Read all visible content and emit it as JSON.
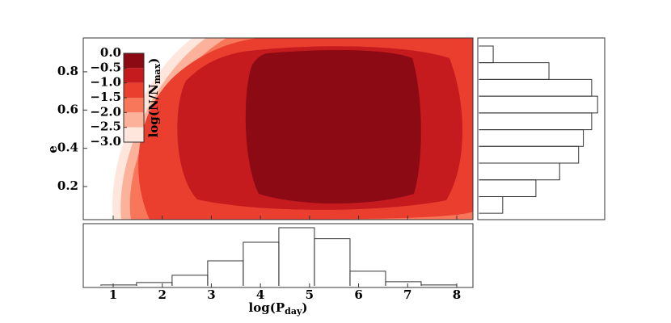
{
  "chart_data": [
    {
      "type": "contour",
      "ylabel": "e",
      "xlim": [
        0.39,
        8.33
      ],
      "ylim": [
        0.027,
        0.977
      ],
      "yticks": [
        0.2,
        0.4,
        0.6,
        0.8
      ],
      "colorbar": {
        "label": [
          "log(N/N",
          "max",
          ")"
        ],
        "ticks": [
          {
            "value": 0,
            "label": "0.0"
          },
          {
            "value": -0.5,
            "label": "−0.5"
          },
          {
            "value": -1,
            "label": "−1.0"
          },
          {
            "value": -1.5,
            "label": "−1.5"
          },
          {
            "value": -2,
            "label": "−2.0"
          },
          {
            "value": -2.5,
            "label": "−2.5"
          },
          {
            "value": -3,
            "label": "−3.0"
          }
        ],
        "colors": [
          "#8b0a14",
          "#c51b1f",
          "#ea3e2f",
          "#f8775a",
          "#fcb29a",
          "#fee6dc"
        ]
      }
    },
    {
      "type": "histogram",
      "xlabel": [
        "log(P",
        "day",
        ")"
      ],
      "xlim": [
        0.39,
        8.33
      ],
      "ylim": [
        -0.03,
        1.07
      ],
      "xticks": [
        1,
        2,
        3,
        4,
        5,
        6,
        7,
        8
      ],
      "bins": [
        0.75,
        1.475,
        2.2,
        2.925,
        3.65,
        4.375,
        5.1,
        5.825,
        6.55,
        7.275,
        8.0
      ],
      "values": [
        0.014,
        0.056,
        0.18,
        0.43,
        0.75,
        1.0,
        0.81,
        0.25,
        0.07,
        0.014
      ],
      "color": "#333333"
    },
    {
      "type": "histogram",
      "orientation": "horizontal",
      "ylim": [
        0.027,
        0.977
      ],
      "xlim": [
        -0.01,
        1.06
      ],
      "bins": [
        0.06,
        0.1475,
        0.235,
        0.3225,
        0.41,
        0.4975,
        0.585,
        0.6725,
        0.76,
        0.8475,
        0.935
      ],
      "values": [
        0.2,
        0.48,
        0.68,
        0.84,
        0.88,
        0.95,
        1.0,
        0.95,
        0.59,
        0.12
      ],
      "color": "#333333"
    }
  ]
}
